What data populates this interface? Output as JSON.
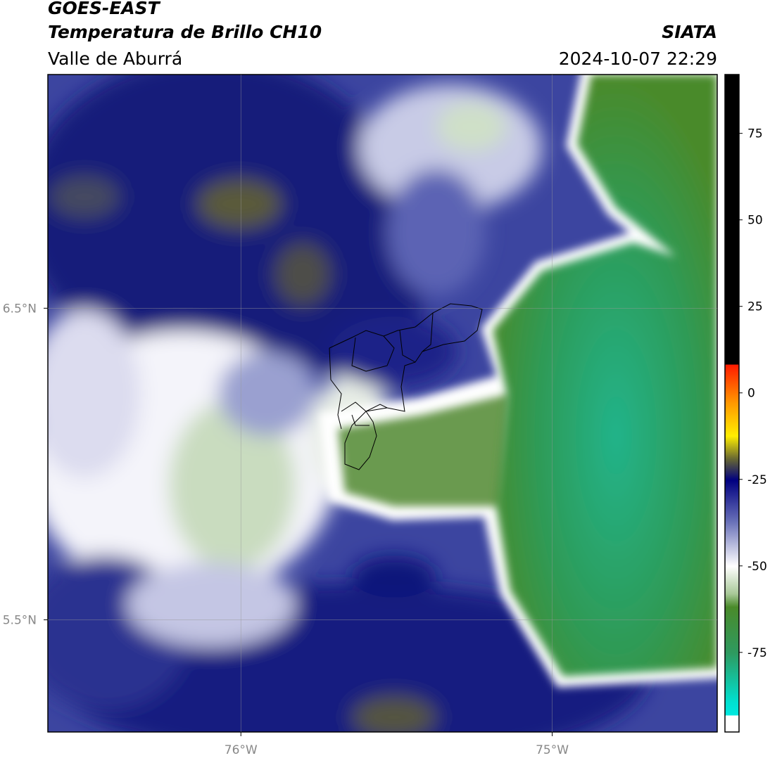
{
  "header": {
    "title": "GOES-EAST",
    "subtitle": "Temperatura de Brillo CH10",
    "region": "Valle de Aburrá",
    "source": "SIATA",
    "datetime": "2024-10-07 22:29"
  },
  "chart_data": {
    "type": "map",
    "xlim": [
      -76.62,
      -74.47
    ],
    "ylim": [
      5.14,
      7.25
    ],
    "xticks": [
      {
        "value": -76,
        "label": "76°W"
      },
      {
        "value": -75,
        "label": "75°W"
      }
    ],
    "yticks": [
      {
        "value": 6.5,
        "label": "6.5°N"
      },
      {
        "value": 5.5,
        "label": "5.5°N"
      }
    ],
    "grid": true,
    "colorbar": {
      "lim": [
        -98,
        92
      ],
      "ticks": [
        -75,
        -50,
        -25,
        0,
        25,
        50,
        75
      ]
    }
  }
}
